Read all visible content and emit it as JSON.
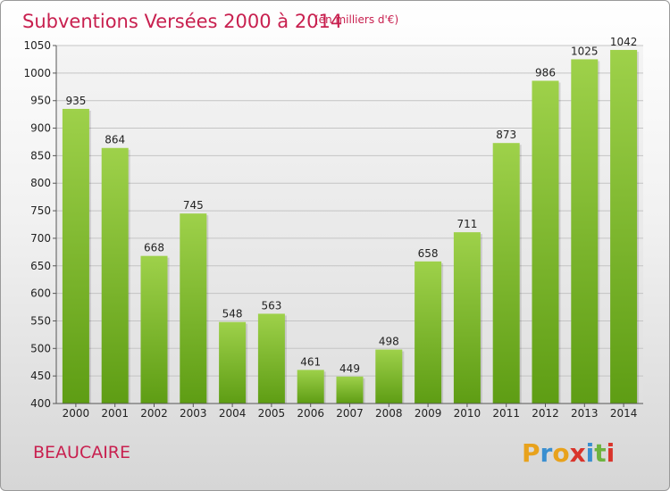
{
  "chart_data": {
    "type": "bar",
    "title": "Subventions Versées 2000 à 2014",
    "subtitle": "(en milliers d'€)",
    "categories": [
      "2000",
      "2001",
      "2002",
      "2003",
      "2004",
      "2005",
      "2006",
      "2007",
      "2008",
      "2009",
      "2010",
      "2011",
      "2012",
      "2013",
      "2014"
    ],
    "values": [
      935,
      864,
      668,
      745,
      548,
      563,
      461,
      449,
      498,
      658,
      711,
      873,
      986,
      1025,
      1042
    ],
    "ylim": [
      400,
      1050
    ],
    "yticks": [
      400,
      450,
      500,
      550,
      600,
      650,
      700,
      750,
      800,
      850,
      900,
      950,
      1000,
      1050
    ],
    "grid": true,
    "bar_color": "#7fc22f"
  },
  "footer": {
    "city": "BEAUCAIRE",
    "brand": [
      "P",
      "r",
      "o",
      "x",
      "i",
      "t",
      "i"
    ],
    "brand_colors": [
      "#e8a21c",
      "#3a8fd0",
      "#e8a21c",
      "#d9342b",
      "#3a8fd0",
      "#6db33f",
      "#d9342b"
    ]
  }
}
